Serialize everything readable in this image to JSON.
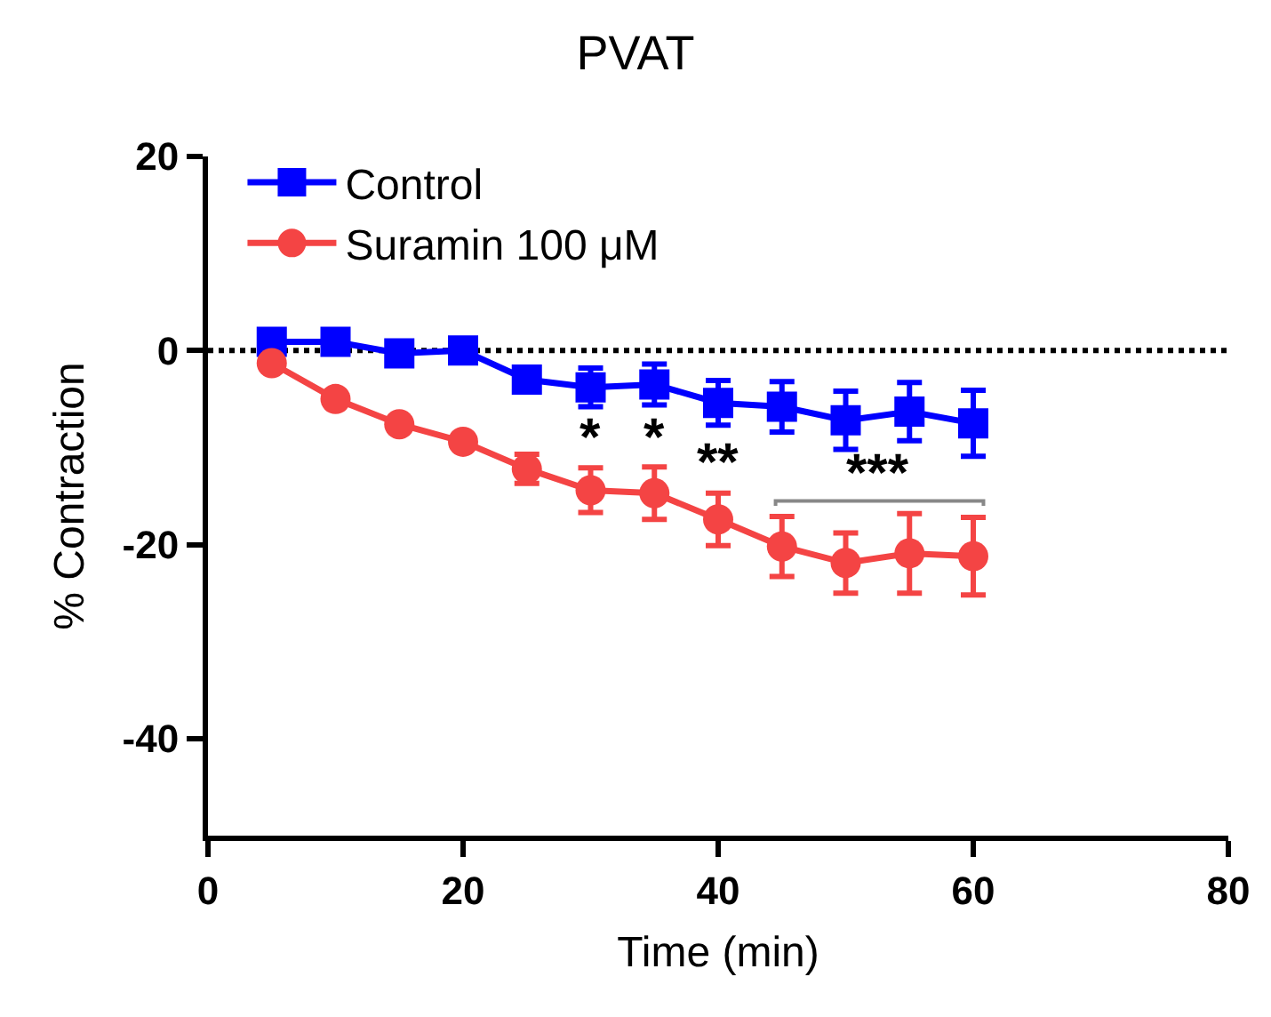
{
  "chart_data": {
    "type": "line",
    "title": "PVAT",
    "xlabel": "Time (min)",
    "ylabel": "% Contraction",
    "x": [
      5,
      10,
      15,
      20,
      25,
      30,
      35,
      40,
      45,
      50,
      55,
      60
    ],
    "series": [
      {
        "name": "Control",
        "color": "#0000ff",
        "marker": "square",
        "values": [
          0.9,
          0.9,
          -0.3,
          0,
          -3.0,
          -3.8,
          -3.5,
          -5.4,
          -5.8,
          -7.2,
          -6.3,
          -7.5
        ],
        "errors": [
          null,
          null,
          null,
          null,
          null,
          2.0,
          2.1,
          2.3,
          2.6,
          3.0,
          3.0,
          3.4
        ]
      },
      {
        "name": "Suramin 100 μM",
        "color": "#f44444",
        "marker": "circle",
        "values": [
          -1.3,
          -5.0,
          -7.6,
          -9.4,
          -12.2,
          -14.4,
          -14.7,
          -17.4,
          -20.2,
          -21.9,
          -20.9,
          -21.2
        ],
        "errors": [
          null,
          null,
          null,
          null,
          1.5,
          2.3,
          2.7,
          2.7,
          3.1,
          3.1,
          4.1,
          4.0
        ]
      }
    ],
    "annotations": [
      {
        "text": "*",
        "x": 30,
        "y": -12.1
      },
      {
        "text": "*",
        "x": 35,
        "y": -12.0
      },
      {
        "text": "**",
        "x": 40,
        "y": -14.7
      },
      {
        "text": "***",
        "x": 55,
        "y": -16.8
      }
    ],
    "ref_lines": [
      {
        "axis": "y",
        "value": 0,
        "color": "#000000",
        "line_style": "dotted"
      }
    ],
    "xlim": [
      0,
      80
    ],
    "xticks": [
      0,
      20,
      40,
      60,
      80
    ],
    "ylim": [
      -50,
      20
    ],
    "yticks": [
      -40,
      -20,
      0,
      20
    ],
    "grid": false,
    "legend": "top left",
    "line_style": "solid"
  }
}
